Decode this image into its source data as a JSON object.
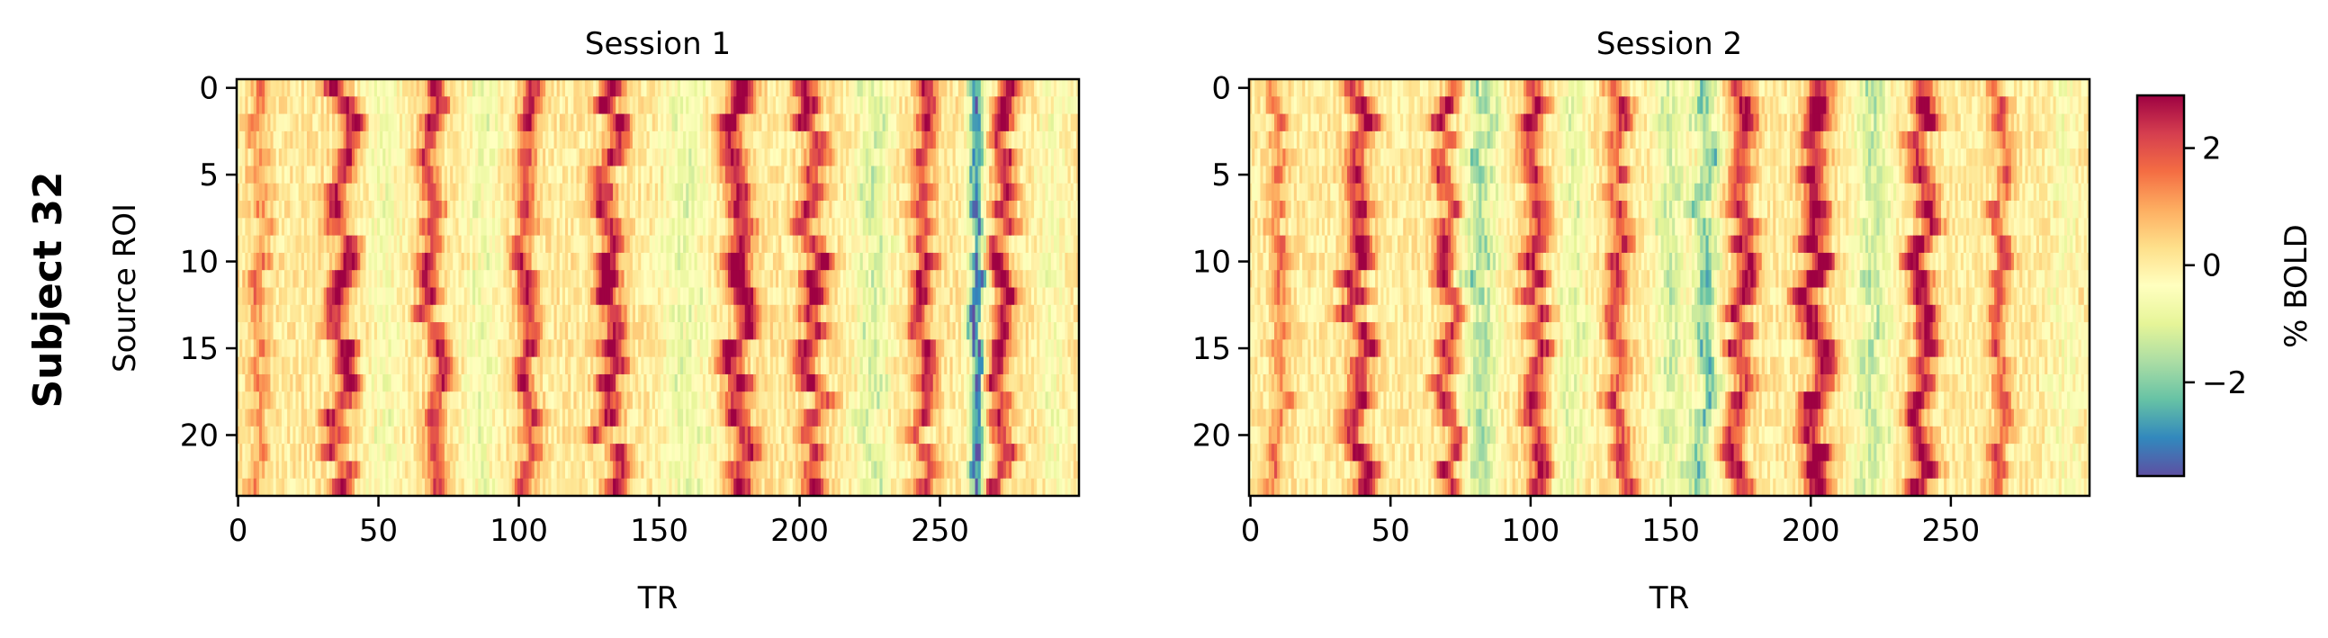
{
  "figure": {
    "row_label": "Subject 32",
    "colorbar": {
      "label": "% BOLD",
      "range": [
        -3.6,
        2.9
      ],
      "ticks": [
        2,
        0,
        -2
      ],
      "tick_labels": [
        "2",
        "0",
        "−2"
      ],
      "colormap": "Spectral_r"
    }
  },
  "chart_data": [
    {
      "type": "heatmap",
      "title": "Session 1",
      "xlabel": "TR",
      "ylabel": "Source ROI",
      "x_range": [
        0,
        299
      ],
      "y_range": [
        0,
        23
      ],
      "x_ticks": [
        0,
        50,
        100,
        150,
        200,
        250
      ],
      "y_ticks": [
        0,
        5,
        10,
        15,
        20
      ],
      "n_rows": 24,
      "n_cols": 300,
      "bands": [
        {
          "center": 8,
          "width": 3,
          "value": 1.2,
          "drift": 2
        },
        {
          "center": 37,
          "width": 4,
          "value": 2.6,
          "drift": 3
        },
        {
          "center": 69,
          "width": 3.5,
          "value": 2.2,
          "drift": 3
        },
        {
          "center": 103,
          "width": 3.5,
          "value": 2.2,
          "drift": 2
        },
        {
          "center": 132,
          "width": 4,
          "value": 2.7,
          "drift": 4
        },
        {
          "center": 178,
          "width": 4.5,
          "value": 2.8,
          "drift": 3
        },
        {
          "center": 205,
          "width": 4,
          "value": 2.5,
          "drift": 3
        },
        {
          "center": 244,
          "width": 3.5,
          "value": 2.3,
          "drift": 3
        },
        {
          "center": 272,
          "width": 3.5,
          "value": 2.6,
          "drift": 3
        },
        {
          "center": 263,
          "width": 2.5,
          "value": -3.2,
          "drift": 1
        },
        {
          "center": 226,
          "width": 6,
          "value": -1.2,
          "drift": 2
        },
        {
          "center": 160,
          "width": 8,
          "value": -0.9,
          "drift": 2
        },
        {
          "center": 87,
          "width": 6,
          "value": -0.8,
          "drift": 2
        },
        {
          "center": 52,
          "width": 6,
          "value": -0.7,
          "drift": 2
        },
        {
          "center": 290,
          "width": 5,
          "value": -0.6,
          "drift": 2
        }
      ],
      "baseline": 0.1,
      "seed": 32
    },
    {
      "type": "heatmap",
      "title": "Session 2",
      "xlabel": "TR",
      "ylabel": "",
      "x_range": [
        0,
        299
      ],
      "y_range": [
        0,
        23
      ],
      "x_ticks": [
        0,
        50,
        100,
        150,
        200,
        250
      ],
      "y_ticks": [
        0,
        5,
        10,
        15,
        20
      ],
      "n_rows": 24,
      "n_cols": 300,
      "bands": [
        {
          "center": 10,
          "width": 3,
          "value": 1.3,
          "drift": 2
        },
        {
          "center": 38,
          "width": 4,
          "value": 2.6,
          "drift": 3
        },
        {
          "center": 71,
          "width": 3.5,
          "value": 2.3,
          "drift": 3
        },
        {
          "center": 102,
          "width": 4,
          "value": 2.3,
          "drift": 3
        },
        {
          "center": 132,
          "width": 3.5,
          "value": 2.0,
          "drift": 3
        },
        {
          "center": 175,
          "width": 4,
          "value": 2.4,
          "drift": 3
        },
        {
          "center": 201,
          "width": 4.5,
          "value": 2.9,
          "drift": 3
        },
        {
          "center": 240,
          "width": 4,
          "value": 2.7,
          "drift": 3
        },
        {
          "center": 268,
          "width": 3,
          "value": 1.8,
          "drift": 2
        },
        {
          "center": 82,
          "width": 6,
          "value": -1.6,
          "drift": 2
        },
        {
          "center": 162,
          "width": 4,
          "value": -2.0,
          "drift": 2
        },
        {
          "center": 150,
          "width": 5,
          "value": -1.2,
          "drift": 2
        },
        {
          "center": 222,
          "width": 6,
          "value": -1.3,
          "drift": 2
        },
        {
          "center": 115,
          "width": 5,
          "value": -0.9,
          "drift": 2
        },
        {
          "center": 290,
          "width": 5,
          "value": -0.5,
          "drift": 2
        }
      ],
      "baseline": 0.05,
      "seed": 64
    }
  ]
}
